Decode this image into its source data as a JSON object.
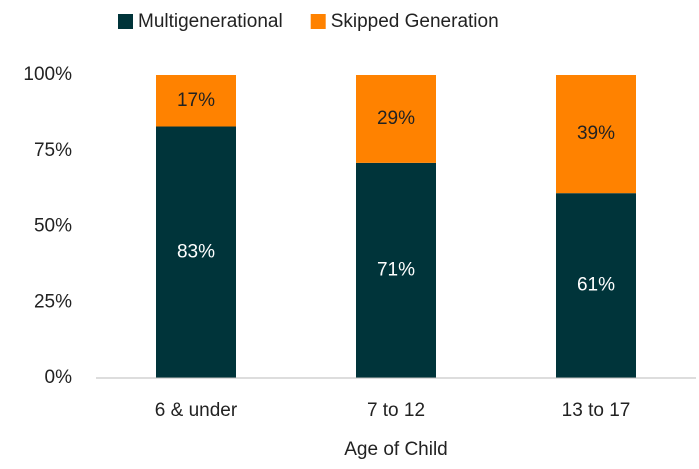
{
  "chart_data": {
    "type": "stacked_bar",
    "x_label": "Age of Child",
    "categories": [
      "6 & under",
      "7 to 12",
      "13 to 17"
    ],
    "series": [
      {
        "name": "Multigenerational",
        "color": "#00343a",
        "values": [
          83,
          71,
          61
        ],
        "value_labels": [
          "83%",
          "71%",
          "61%"
        ]
      },
      {
        "name": "Skipped Generation",
        "color": "#ff8200",
        "values": [
          17,
          29,
          39
        ],
        "value_labels": [
          "17%",
          "29%",
          "39%"
        ]
      }
    ],
    "ylim": [
      0,
      100
    ],
    "yticks": [
      {
        "value": 0,
        "label": "0%"
      },
      {
        "value": 25,
        "label": "25%"
      },
      {
        "value": 50,
        "label": "50%"
      },
      {
        "value": 75,
        "label": "75%"
      },
      {
        "value": 100,
        "label": "100%"
      }
    ],
    "grid": false,
    "legend": "top"
  }
}
